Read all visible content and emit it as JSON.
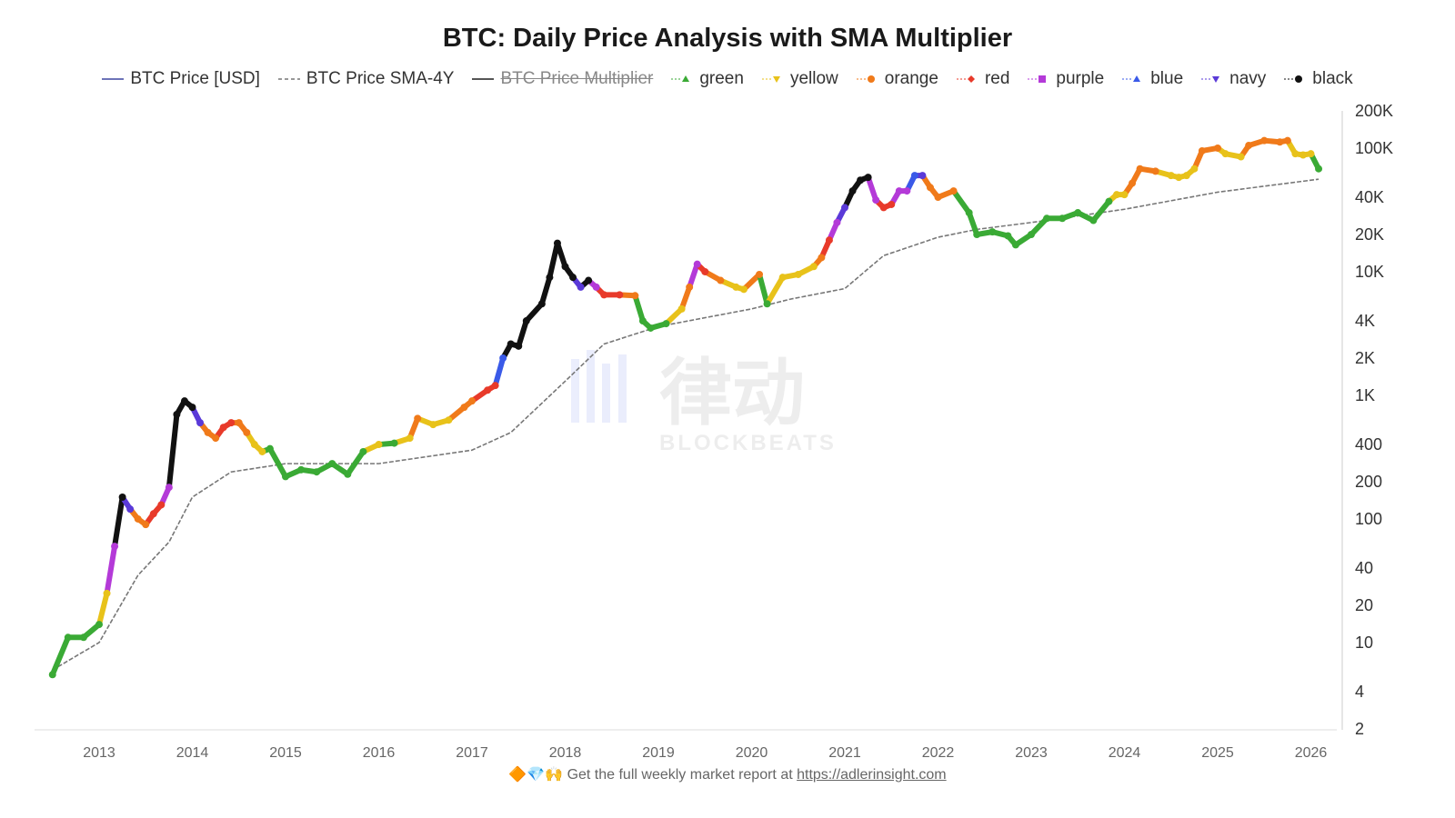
{
  "chart_data": {
    "type": "line",
    "title": "BTC: Daily Price Analysis with SMA Multiplier",
    "y_scale": "log",
    "ylim": [
      2,
      200000
    ],
    "xlim": [
      "2012-07",
      "2026-03"
    ],
    "grid": false,
    "legend_placement": "top",
    "legend": [
      {
        "label": "BTC Price [USD]",
        "style": "line",
        "color": "#6d74b8"
      },
      {
        "label": "BTC Price SMA-4Y",
        "style": "dashed",
        "color": "#777777"
      },
      {
        "label": "BTC Price Multiplier",
        "style": "line",
        "color": "#555555",
        "hidden": true
      },
      {
        "label": "green",
        "style": "triangle-up",
        "color": "#3aaa35"
      },
      {
        "label": "yellow",
        "style": "triangle-down",
        "color": "#e8c21a"
      },
      {
        "label": "orange",
        "style": "circle",
        "color": "#f07a1a"
      },
      {
        "label": "red",
        "style": "diamond",
        "color": "#e83a2a"
      },
      {
        "label": "purple",
        "style": "square",
        "color": "#b43ad8"
      },
      {
        "label": "blue",
        "style": "triangle-up",
        "color": "#3a5ae8"
      },
      {
        "label": "navy",
        "style": "triangle-down",
        "color": "#5a3ad8"
      },
      {
        "label": "black",
        "style": "circle",
        "color": "#111111"
      }
    ],
    "x_ticks": [
      "2013",
      "2014",
      "2015",
      "2016",
      "2017",
      "2018",
      "2019",
      "2020",
      "2021",
      "2022",
      "2023",
      "2024",
      "2025",
      "2026"
    ],
    "y_ticks": [
      {
        "v": 2,
        "l": "2"
      },
      {
        "v": 4,
        "l": "4"
      },
      {
        "v": 10,
        "l": "10"
      },
      {
        "v": 20,
        "l": "20"
      },
      {
        "v": 40,
        "l": "40"
      },
      {
        "v": 100,
        "l": "100"
      },
      {
        "v": 200,
        "l": "200"
      },
      {
        "v": 400,
        "l": "400"
      },
      {
        "v": 1000,
        "l": "1K"
      },
      {
        "v": 2000,
        "l": "2K"
      },
      {
        "v": 4000,
        "l": "4K"
      },
      {
        "v": 10000,
        "l": "10K"
      },
      {
        "v": 20000,
        "l": "20K"
      },
      {
        "v": 40000,
        "l": "40K"
      },
      {
        "v": 100000,
        "l": "100K"
      },
      {
        "v": 200000,
        "l": "200K"
      }
    ],
    "price": [
      [
        "2012-07",
        5.5,
        "green"
      ],
      [
        "2012-09",
        11,
        "green"
      ],
      [
        "2012-11",
        11,
        "green"
      ],
      [
        "2013-01",
        14,
        "green"
      ],
      [
        "2013-02",
        25,
        "yellow"
      ],
      [
        "2013-03",
        60,
        "purple"
      ],
      [
        "2013-04",
        150,
        "black"
      ],
      [
        "2013-05",
        120,
        "navy"
      ],
      [
        "2013-06",
        100,
        "orange"
      ],
      [
        "2013-07",
        90,
        "orange"
      ],
      [
        "2013-08",
        110,
        "red"
      ],
      [
        "2013-09",
        130,
        "red"
      ],
      [
        "2013-10",
        180,
        "purple"
      ],
      [
        "2013-11",
        700,
        "black"
      ],
      [
        "2013-12",
        900,
        "black"
      ],
      [
        "2014-01",
        800,
        "black"
      ],
      [
        "2014-02",
        600,
        "navy"
      ],
      [
        "2014-03",
        500,
        "orange"
      ],
      [
        "2014-04",
        450,
        "orange"
      ],
      [
        "2014-05",
        550,
        "red"
      ],
      [
        "2014-06",
        600,
        "red"
      ],
      [
        "2014-07",
        600,
        "orange"
      ],
      [
        "2014-08",
        500,
        "orange"
      ],
      [
        "2014-09",
        400,
        "yellow"
      ],
      [
        "2014-10",
        350,
        "yellow"
      ],
      [
        "2014-11",
        370,
        "green"
      ],
      [
        "2015-01",
        220,
        "green"
      ],
      [
        "2015-03",
        250,
        "green"
      ],
      [
        "2015-05",
        240,
        "green"
      ],
      [
        "2015-07",
        280,
        "green"
      ],
      [
        "2015-09",
        230,
        "green"
      ],
      [
        "2015-11",
        350,
        "green"
      ],
      [
        "2016-01",
        400,
        "yellow"
      ],
      [
        "2016-03",
        410,
        "green"
      ],
      [
        "2016-05",
        450,
        "yellow"
      ],
      [
        "2016-06",
        650,
        "orange"
      ],
      [
        "2016-08",
        580,
        "yellow"
      ],
      [
        "2016-10",
        630,
        "yellow"
      ],
      [
        "2016-12",
        800,
        "orange"
      ],
      [
        "2017-01",
        900,
        "orange"
      ],
      [
        "2017-03",
        1100,
        "red"
      ],
      [
        "2017-04",
        1200,
        "red"
      ],
      [
        "2017-05",
        2000,
        "blue"
      ],
      [
        "2017-06",
        2600,
        "black"
      ],
      [
        "2017-07",
        2500,
        "black"
      ],
      [
        "2017-08",
        4000,
        "black"
      ],
      [
        "2017-10",
        5500,
        "black"
      ],
      [
        "2017-11",
        9000,
        "black"
      ],
      [
        "2017-12",
        17000,
        "black"
      ],
      [
        "2018-01",
        11000,
        "black"
      ],
      [
        "2018-02",
        9000,
        "black"
      ],
      [
        "2018-03",
        7500,
        "navy"
      ],
      [
        "2018-04",
        8500,
        "black"
      ],
      [
        "2018-05",
        7500,
        "purple"
      ],
      [
        "2018-06",
        6500,
        "red"
      ],
      [
        "2018-08",
        6500,
        "red"
      ],
      [
        "2018-10",
        6400,
        "orange"
      ],
      [
        "2018-11",
        4000,
        "green"
      ],
      [
        "2018-12",
        3500,
        "green"
      ],
      [
        "2019-02",
        3800,
        "green"
      ],
      [
        "2019-04",
        5000,
        "yellow"
      ],
      [
        "2019-05",
        7500,
        "orange"
      ],
      [
        "2019-06",
        11500,
        "purple"
      ],
      [
        "2019-07",
        10000,
        "red"
      ],
      [
        "2019-09",
        8500,
        "orange"
      ],
      [
        "2019-11",
        7500,
        "yellow"
      ],
      [
        "2019-12",
        7200,
        "yellow"
      ],
      [
        "2020-02",
        9500,
        "orange"
      ],
      [
        "2020-03",
        5500,
        "green"
      ],
      [
        "2020-05",
        9000,
        "yellow"
      ],
      [
        "2020-07",
        9500,
        "yellow"
      ],
      [
        "2020-09",
        11000,
        "yellow"
      ],
      [
        "2020-10",
        13000,
        "orange"
      ],
      [
        "2020-11",
        18000,
        "red"
      ],
      [
        "2020-12",
        25000,
        "purple"
      ],
      [
        "2021-01",
        33000,
        "navy"
      ],
      [
        "2021-02",
        45000,
        "black"
      ],
      [
        "2021-03",
        55000,
        "black"
      ],
      [
        "2021-04",
        58000,
        "black"
      ],
      [
        "2021-05",
        38000,
        "purple"
      ],
      [
        "2021-06",
        33000,
        "red"
      ],
      [
        "2021-07",
        35000,
        "red"
      ],
      [
        "2021-08",
        45000,
        "purple"
      ],
      [
        "2021-09",
        45000,
        "purple"
      ],
      [
        "2021-10",
        60000,
        "blue"
      ],
      [
        "2021-11",
        60000,
        "navy"
      ],
      [
        "2021-12",
        48000,
        "orange"
      ],
      [
        "2022-01",
        40000,
        "orange"
      ],
      [
        "2022-03",
        45000,
        "orange"
      ],
      [
        "2022-05",
        30000,
        "green"
      ],
      [
        "2022-06",
        20000,
        "green"
      ],
      [
        "2022-08",
        21000,
        "green"
      ],
      [
        "2022-10",
        19500,
        "green"
      ],
      [
        "2022-11",
        16500,
        "green"
      ],
      [
        "2023-01",
        20000,
        "green"
      ],
      [
        "2023-03",
        27000,
        "green"
      ],
      [
        "2023-05",
        27000,
        "green"
      ],
      [
        "2023-07",
        30000,
        "green"
      ],
      [
        "2023-09",
        26000,
        "green"
      ],
      [
        "2023-11",
        37000,
        "green"
      ],
      [
        "2023-12",
        42000,
        "yellow"
      ],
      [
        "2024-01",
        42000,
        "yellow"
      ],
      [
        "2024-02",
        52000,
        "orange"
      ],
      [
        "2024-03",
        68000,
        "orange"
      ],
      [
        "2024-05",
        65000,
        "orange"
      ],
      [
        "2024-07",
        60000,
        "yellow"
      ],
      [
        "2024-08",
        58000,
        "yellow"
      ],
      [
        "2024-09",
        60000,
        "yellow"
      ],
      [
        "2024-10",
        68000,
        "yellow"
      ],
      [
        "2024-11",
        95000,
        "orange"
      ],
      [
        "2025-01",
        100000,
        "orange"
      ],
      [
        "2025-02",
        90000,
        "yellow"
      ],
      [
        "2025-04",
        85000,
        "yellow"
      ],
      [
        "2025-05",
        105000,
        "orange"
      ],
      [
        "2025-07",
        115000,
        "orange"
      ],
      [
        "2025-09",
        112000,
        "orange"
      ],
      [
        "2025-10",
        115000,
        "orange"
      ],
      [
        "2025-11",
        90000,
        "yellow"
      ],
      [
        "2025-12",
        88000,
        "yellow"
      ],
      [
        "2026-01",
        90000,
        "yellow"
      ],
      [
        "2026-02",
        68000,
        "green"
      ]
    ],
    "sma_4y": [
      [
        "2012-07",
        6
      ],
      [
        "2013-01",
        10
      ],
      [
        "2013-06",
        35
      ],
      [
        "2013-10",
        65
      ],
      [
        "2014-01",
        150
      ],
      [
        "2014-06",
        240
      ],
      [
        "2015-01",
        280
      ],
      [
        "2016-01",
        280
      ],
      [
        "2017-01",
        360
      ],
      [
        "2017-06",
        500
      ],
      [
        "2018-01",
        1300
      ],
      [
        "2018-06",
        2600
      ],
      [
        "2019-01",
        3600
      ],
      [
        "2020-01",
        5000
      ],
      [
        "2020-06",
        6000
      ],
      [
        "2021-01",
        7300
      ],
      [
        "2021-06",
        13500
      ],
      [
        "2022-01",
        19000
      ],
      [
        "2022-06",
        22000
      ],
      [
        "2023-01",
        25000
      ],
      [
        "2024-01",
        32000
      ],
      [
        "2025-01",
        44000
      ],
      [
        "2026-02",
        56000
      ]
    ]
  },
  "footer": {
    "emojis": "🔶💎🙌",
    "text": "Get the full weekly market report at ",
    "link": "https://adlerinsight.com"
  },
  "watermark": {
    "text": "律动",
    "sub": "BLOCKBEATS"
  }
}
